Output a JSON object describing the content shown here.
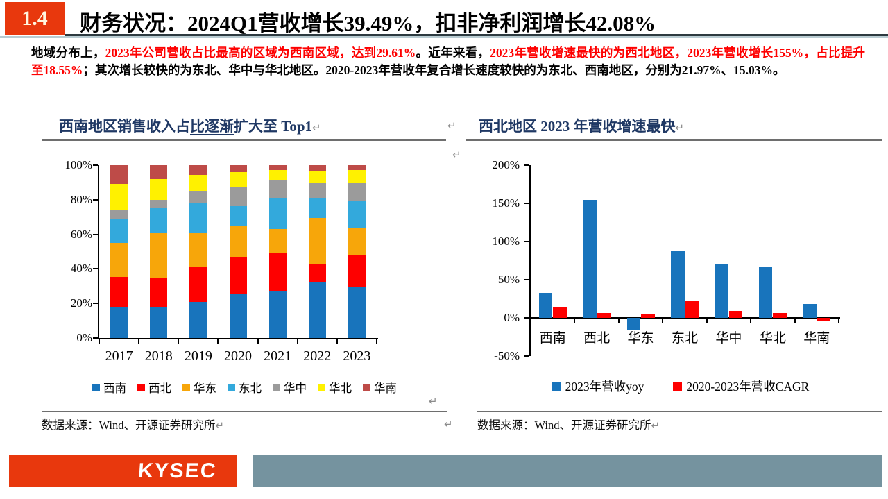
{
  "header": {
    "badge": "1.4",
    "title": "财务状况：2024Q1营收增长39.49%，扣非净利润增长42.08%"
  },
  "paragraph": {
    "segments": [
      {
        "text": "地域分布上，",
        "style": "black"
      },
      {
        "text": "2023年公司营收占比最高的区域为西南区域，达到29.61%",
        "style": "red"
      },
      {
        "text": "。近年来看，",
        "style": "black"
      },
      {
        "text": "2023年营收增速最快的为西北地区，2023年营收增长155%，占比提升至18.55%",
        "style": "red"
      },
      {
        "text": "；其次增长较快的为东北、华中与华北地区。2020-2023年营收年复合增长速度较快的为东北、西南地区，分别为21.97%、15.03%。",
        "style": "black"
      }
    ]
  },
  "left_chart": {
    "title_parts": [
      "西南地区销售收入占",
      "比逐渐",
      "扩大至 Top1"
    ],
    "source": "数据来源：Wind、开源证券研究所"
  },
  "right_chart": {
    "title": "西北地区 2023 年营收增速最快",
    "source": "数据来源：Wind、开源证券研究所"
  },
  "chart_data": [
    {
      "type": "bar",
      "stacked": true,
      "title": "西南地区销售收入占比逐渐扩大至 Top1",
      "categories": [
        "2017",
        "2018",
        "2019",
        "2020",
        "2021",
        "2022",
        "2023"
      ],
      "series": [
        {
          "name": "西南",
          "color": "#1874bc",
          "values": [
            18,
            18,
            21,
            25.5,
            27,
            32,
            29.6
          ]
        },
        {
          "name": "西北",
          "color": "#fe0000",
          "values": [
            17.5,
            17,
            20.5,
            21,
            22.5,
            10.5,
            18.6
          ]
        },
        {
          "name": "华东",
          "color": "#f7a60a",
          "values": [
            19.5,
            25.5,
            19,
            18.5,
            13.5,
            27,
            15.8
          ]
        },
        {
          "name": "东北",
          "color": "#33a9dc",
          "values": [
            13.5,
            14.5,
            18,
            11.5,
            18,
            11.5,
            15
          ]
        },
        {
          "name": "华中",
          "color": "#9b9b9b",
          "values": [
            6,
            5,
            6.5,
            10.5,
            10,
            9,
            10.5
          ]
        },
        {
          "name": "华北",
          "color": "#fff100",
          "values": [
            14.5,
            12,
            9.5,
            9,
            6,
            6.5,
            7.5
          ]
        },
        {
          "name": "华南",
          "color": "#be4b48",
          "values": [
            11,
            8,
            5.5,
            4,
            3,
            3.5,
            3
          ]
        }
      ],
      "ylim": [
        0,
        100
      ],
      "yticks": [
        0,
        20,
        40,
        60,
        80,
        100
      ],
      "ytick_suffix": "%",
      "grid": false,
      "legend_position": "bottom"
    },
    {
      "type": "bar",
      "grouped": true,
      "title": "西北地区 2023 年营收增速最快",
      "categories": [
        "西南",
        "西北",
        "华东",
        "东北",
        "华中",
        "华北",
        "华南"
      ],
      "series": [
        {
          "name": "2023年营收yoy",
          "color": "#1874bc",
          "values": [
            33,
            155,
            -15,
            88,
            71,
            67,
            18
          ]
        },
        {
          "name": "2020-2023年营收CAGR",
          "color": "#fe0000",
          "values": [
            15,
            6,
            5,
            22,
            9,
            6,
            -4
          ]
        }
      ],
      "ylim": [
        -50,
        200
      ],
      "yticks": [
        -50,
        0,
        50,
        100,
        150,
        200
      ],
      "ytick_suffix": "%",
      "grid": false,
      "legend_position": "bottom"
    }
  ],
  "misc": {
    "return_glyph": "↵"
  },
  "footer": {
    "logo_text": "KYSEC"
  },
  "colors": {
    "accent_red": "#e8380d",
    "body_red": "#fe0000",
    "chart_title_navy": "#1f3864",
    "header_line_dark": "#2d3a40",
    "header_line_light": "#b9ccd2",
    "footer_bar": "#75939f",
    "hairline": "#6e6e6e",
    "return_mark": "#8c8c8c"
  }
}
